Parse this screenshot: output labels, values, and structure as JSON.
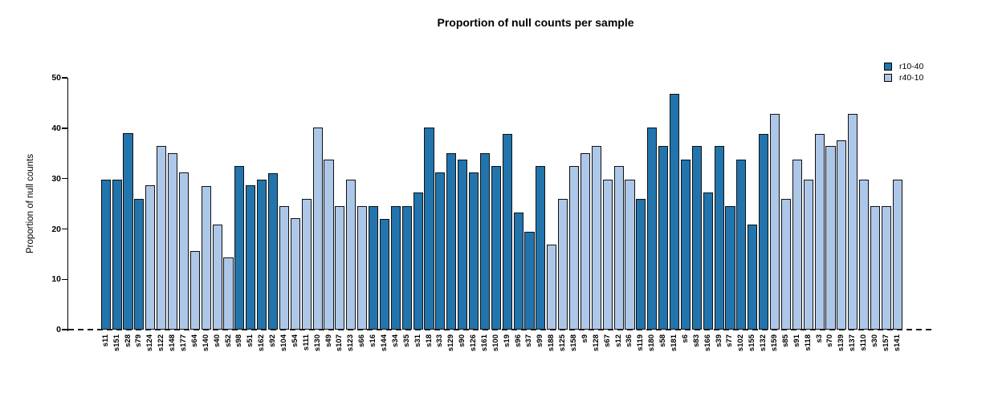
{
  "chart_data": {
    "type": "bar",
    "title": "Proportion of null counts per sample",
    "xlabel": "",
    "ylabel": "Proportion of null counts",
    "ylim": [
      0,
      50
    ],
    "yticks": [
      0,
      10,
      20,
      30,
      40,
      50
    ],
    "grid": false,
    "legend_position": "top-right",
    "zero_line_style": "dashed",
    "bar_border_color": "#111111",
    "groups": [
      {
        "name": "r10-40",
        "color": "#2274ad"
      },
      {
        "name": "r40-10",
        "color": "#adc7e8"
      }
    ],
    "bars": [
      {
        "sample": "s11",
        "value": 29.8,
        "group": "r10-40"
      },
      {
        "sample": "s151",
        "value": 29.8,
        "group": "r10-40"
      },
      {
        "sample": "s28",
        "value": 39.0,
        "group": "r10-40"
      },
      {
        "sample": "s79",
        "value": 26.0,
        "group": "r10-40"
      },
      {
        "sample": "s124",
        "value": 28.6,
        "group": "r40-10"
      },
      {
        "sample": "s122",
        "value": 36.4,
        "group": "r40-10"
      },
      {
        "sample": "s148",
        "value": 35.0,
        "group": "r40-10"
      },
      {
        "sample": "s177",
        "value": 31.2,
        "group": "r40-10"
      },
      {
        "sample": "s64",
        "value": 15.6,
        "group": "r40-10"
      },
      {
        "sample": "s140",
        "value": 28.5,
        "group": "r40-10"
      },
      {
        "sample": "s40",
        "value": 20.8,
        "group": "r40-10"
      },
      {
        "sample": "s52",
        "value": 14.3,
        "group": "r40-10"
      },
      {
        "sample": "s98",
        "value": 32.5,
        "group": "r10-40"
      },
      {
        "sample": "s51",
        "value": 28.6,
        "group": "r10-40"
      },
      {
        "sample": "s162",
        "value": 29.8,
        "group": "r10-40"
      },
      {
        "sample": "s92",
        "value": 31.1,
        "group": "r10-40"
      },
      {
        "sample": "s104",
        "value": 24.6,
        "group": "r40-10"
      },
      {
        "sample": "s54",
        "value": 22.1,
        "group": "r40-10"
      },
      {
        "sample": "s111",
        "value": 26.0,
        "group": "r40-10"
      },
      {
        "sample": "s130",
        "value": 40.2,
        "group": "r40-10"
      },
      {
        "sample": "s49",
        "value": 33.8,
        "group": "r40-10"
      },
      {
        "sample": "s107",
        "value": 24.6,
        "group": "r40-10"
      },
      {
        "sample": "s123",
        "value": 29.8,
        "group": "r40-10"
      },
      {
        "sample": "s66",
        "value": 24.6,
        "group": "r40-10"
      },
      {
        "sample": "s16",
        "value": 24.5,
        "group": "r10-40"
      },
      {
        "sample": "s144",
        "value": 22.0,
        "group": "r10-40"
      },
      {
        "sample": "s34",
        "value": 24.5,
        "group": "r10-40"
      },
      {
        "sample": "s35",
        "value": 24.5,
        "group": "r10-40"
      },
      {
        "sample": "s31",
        "value": 27.3,
        "group": "r10-40"
      },
      {
        "sample": "s18",
        "value": 40.2,
        "group": "r10-40"
      },
      {
        "sample": "s33",
        "value": 31.2,
        "group": "r10-40"
      },
      {
        "sample": "s129",
        "value": 35.0,
        "group": "r10-40"
      },
      {
        "sample": "s90",
        "value": 33.8,
        "group": "r10-40"
      },
      {
        "sample": "s126",
        "value": 31.2,
        "group": "r10-40"
      },
      {
        "sample": "s161",
        "value": 35.0,
        "group": "r10-40"
      },
      {
        "sample": "s100",
        "value": 32.5,
        "group": "r10-40"
      },
      {
        "sample": "s19",
        "value": 38.9,
        "group": "r10-40"
      },
      {
        "sample": "s96",
        "value": 23.3,
        "group": "r10-40"
      },
      {
        "sample": "s37",
        "value": 19.5,
        "group": "r10-40"
      },
      {
        "sample": "s99",
        "value": 32.5,
        "group": "r10-40"
      },
      {
        "sample": "s188",
        "value": 16.9,
        "group": "r40-10"
      },
      {
        "sample": "s125",
        "value": 26.0,
        "group": "r40-10"
      },
      {
        "sample": "s158",
        "value": 32.5,
        "group": "r40-10"
      },
      {
        "sample": "s9",
        "value": 35.0,
        "group": "r40-10"
      },
      {
        "sample": "s128",
        "value": 36.4,
        "group": "r40-10"
      },
      {
        "sample": "s67",
        "value": 29.8,
        "group": "r40-10"
      },
      {
        "sample": "s12",
        "value": 32.5,
        "group": "r40-10"
      },
      {
        "sample": "s36",
        "value": 29.8,
        "group": "r40-10"
      },
      {
        "sample": "s119",
        "value": 26.0,
        "group": "r10-40"
      },
      {
        "sample": "s180",
        "value": 40.2,
        "group": "r10-40"
      },
      {
        "sample": "s58",
        "value": 36.4,
        "group": "r10-40"
      },
      {
        "sample": "s181",
        "value": 46.8,
        "group": "r10-40"
      },
      {
        "sample": "s6",
        "value": 33.8,
        "group": "r10-40"
      },
      {
        "sample": "s83",
        "value": 36.4,
        "group": "r10-40"
      },
      {
        "sample": "s166",
        "value": 27.3,
        "group": "r10-40"
      },
      {
        "sample": "s39",
        "value": 36.4,
        "group": "r10-40"
      },
      {
        "sample": "s77",
        "value": 24.6,
        "group": "r10-40"
      },
      {
        "sample": "s102",
        "value": 33.8,
        "group": "r10-40"
      },
      {
        "sample": "s155",
        "value": 20.8,
        "group": "r10-40"
      },
      {
        "sample": "s132",
        "value": 38.9,
        "group": "r10-40"
      },
      {
        "sample": "s159",
        "value": 42.8,
        "group": "r40-10"
      },
      {
        "sample": "s85",
        "value": 26.0,
        "group": "r40-10"
      },
      {
        "sample": "s91",
        "value": 33.8,
        "group": "r40-10"
      },
      {
        "sample": "s118",
        "value": 29.8,
        "group": "r40-10"
      },
      {
        "sample": "s3",
        "value": 38.9,
        "group": "r40-10"
      },
      {
        "sample": "s70",
        "value": 36.5,
        "group": "r40-10"
      },
      {
        "sample": "s139",
        "value": 37.6,
        "group": "r40-10"
      },
      {
        "sample": "s137",
        "value": 42.8,
        "group": "r40-10"
      },
      {
        "sample": "s110",
        "value": 29.8,
        "group": "r40-10"
      },
      {
        "sample": "s30",
        "value": 24.5,
        "group": "r40-10"
      },
      {
        "sample": "s157",
        "value": 24.5,
        "group": "r40-10"
      },
      {
        "sample": "s141",
        "value": 29.8,
        "group": "r40-10"
      }
    ]
  }
}
